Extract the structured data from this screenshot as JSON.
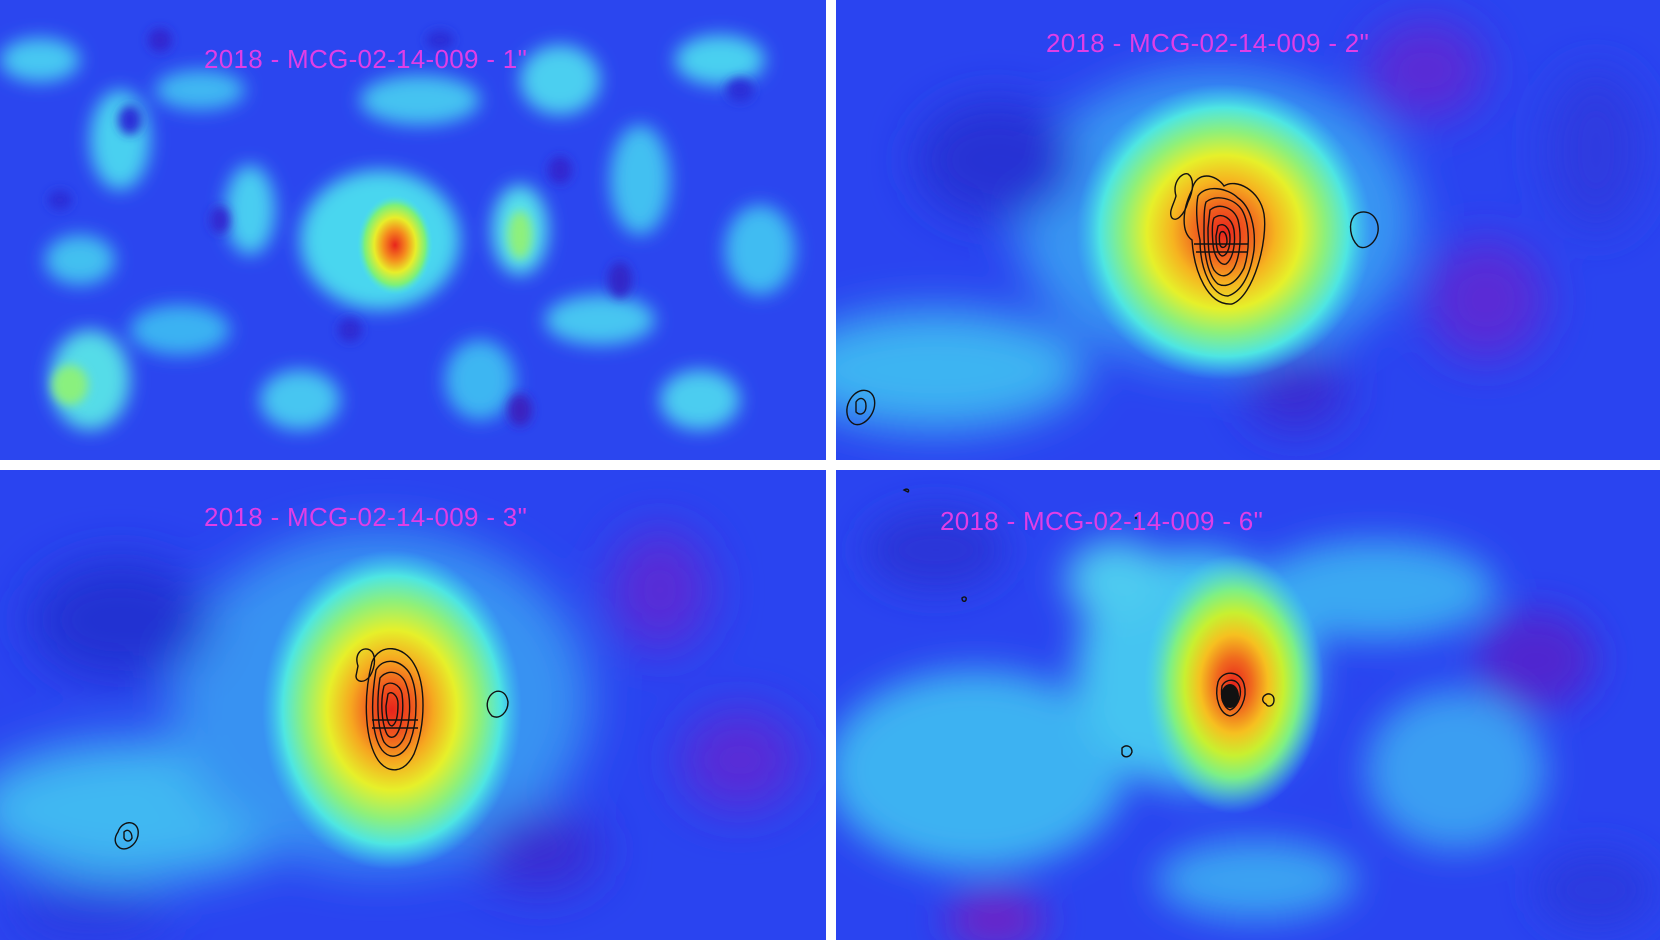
{
  "panels": [
    {
      "id": "panel-1",
      "title": "2018 - MCG-02-14-009 - 1\""
    },
    {
      "id": "panel-2",
      "title": "2018 - MCG-02-14-009 - 2\""
    },
    {
      "id": "panel-3",
      "title": "2018 - MCG-02-14-009 - 3\""
    },
    {
      "id": "panel-4",
      "title": "2018 - MCG-02-14-009 - 6\""
    }
  ],
  "colors": {
    "background": "#2a44f0",
    "title": "#e03ee6",
    "contour": "#111111",
    "divider": "#ffffff"
  }
}
